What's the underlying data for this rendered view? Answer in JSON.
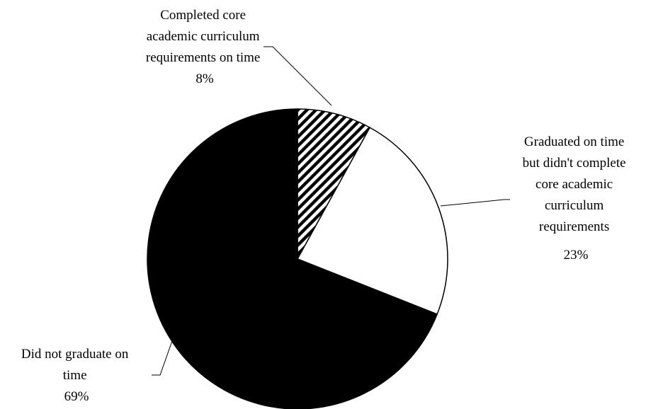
{
  "chart_data": {
    "type": "pie",
    "start_angle_deg": 0,
    "direction": "clockwise",
    "slices": [
      {
        "value": 8,
        "percent_label": "8%",
        "label_lines": [
          "Completed core",
          "academic curriculum",
          "requirements on time"
        ],
        "fill": "hatch",
        "color": "#000000"
      },
      {
        "value": 23,
        "percent_label": "23%",
        "label_lines": [
          "Graduated on time",
          "but didn't complete",
          "core academic",
          "curriculum",
          "requirements"
        ],
        "fill": "solid",
        "color": "#ffffff"
      },
      {
        "value": 69,
        "percent_label": "69%",
        "label_lines": [
          "Did not graduate on",
          "time"
        ],
        "fill": "solid",
        "color": "#000000"
      }
    ]
  }
}
